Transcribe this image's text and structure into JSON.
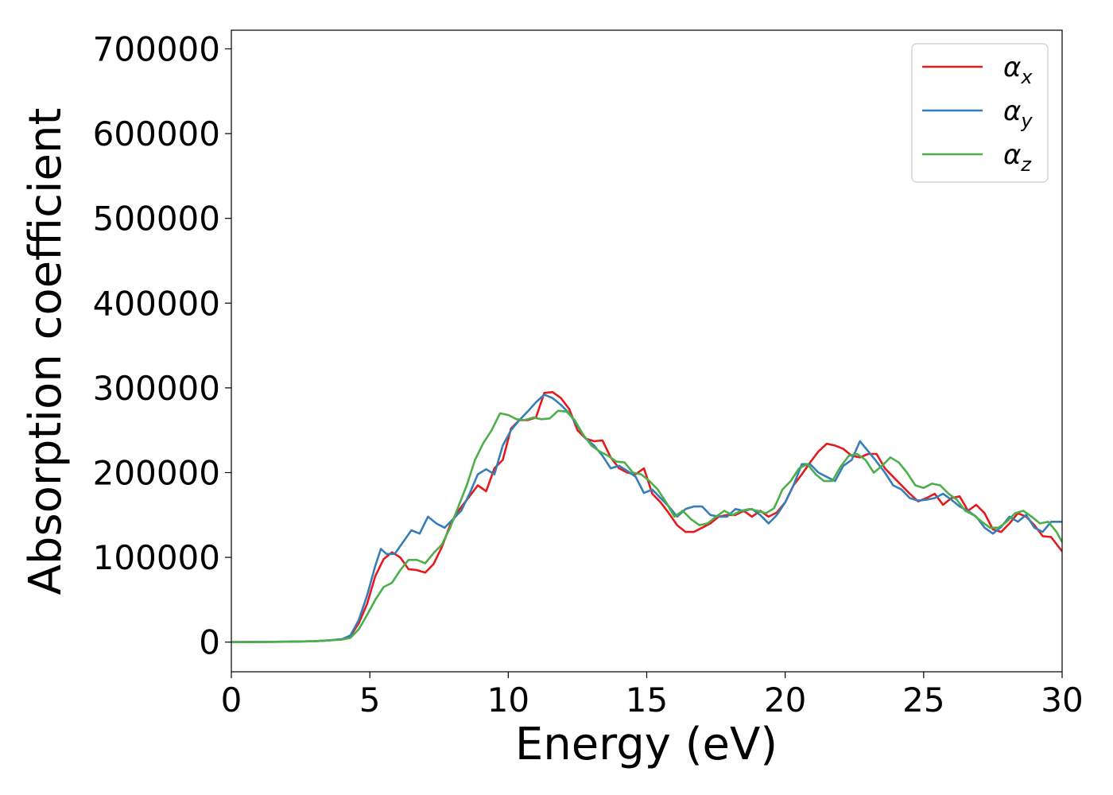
{
  "chart_data": {
    "type": "line",
    "title": "",
    "xlabel": "Energy (eV)",
    "ylabel": "Absorption coefficient",
    "xlim": [
      0,
      30
    ],
    "ylim": [
      -35000,
      722000
    ],
    "xticks": [
      0,
      5,
      10,
      15,
      20,
      25,
      30
    ],
    "yticks": [
      0,
      100000,
      200000,
      300000,
      400000,
      500000,
      600000,
      700000
    ],
    "grid": false,
    "legend_placement": "top-right",
    "series": [
      {
        "name": "α_x",
        "legend_base": "α",
        "legend_sub": "x",
        "color": "#e41a1c",
        "points": [
          [
            0,
            0
          ],
          [
            2,
            500
          ],
          [
            3,
            1000
          ],
          [
            3.5,
            2000
          ],
          [
            4,
            3500
          ],
          [
            4.3,
            7000
          ],
          [
            4.6,
            22000
          ],
          [
            4.9,
            45000
          ],
          [
            5.2,
            78000
          ],
          [
            5.5,
            98000
          ],
          [
            5.8,
            106000
          ],
          [
            6.1,
            100000
          ],
          [
            6.4,
            86000
          ],
          [
            6.7,
            85000
          ],
          [
            7.0,
            82000
          ],
          [
            7.3,
            92000
          ],
          [
            7.6,
            112000
          ],
          [
            7.9,
            138000
          ],
          [
            8.2,
            155000
          ],
          [
            8.6,
            172000
          ],
          [
            8.9,
            185000
          ],
          [
            9.2,
            178000
          ],
          [
            9.5,
            205000
          ],
          [
            9.8,
            215000
          ],
          [
            10.1,
            252000
          ],
          [
            10.4,
            262000
          ],
          [
            10.7,
            262000
          ],
          [
            11.0,
            265000
          ],
          [
            11.3,
            294000
          ],
          [
            11.6,
            295000
          ],
          [
            11.9,
            288000
          ],
          [
            12.2,
            275000
          ],
          [
            12.5,
            250000
          ],
          [
            12.8,
            240000
          ],
          [
            13.1,
            237000
          ],
          [
            13.4,
            238000
          ],
          [
            13.7,
            218000
          ],
          [
            14.0,
            205000
          ],
          [
            14.3,
            200000
          ],
          [
            14.6,
            198000
          ],
          [
            14.9,
            205000
          ],
          [
            15.2,
            175000
          ],
          [
            15.5,
            165000
          ],
          [
            15.8,
            152000
          ],
          [
            16.1,
            138000
          ],
          [
            16.4,
            130000
          ],
          [
            16.7,
            130000
          ],
          [
            17.0,
            135000
          ],
          [
            17.3,
            140000
          ],
          [
            17.6,
            148000
          ],
          [
            17.9,
            150000
          ],
          [
            18.2,
            150000
          ],
          [
            18.5,
            155000
          ],
          [
            18.8,
            148000
          ],
          [
            19.1,
            155000
          ],
          [
            19.4,
            148000
          ],
          [
            19.7,
            153000
          ],
          [
            20.0,
            165000
          ],
          [
            20.3,
            185000
          ],
          [
            20.6,
            198000
          ],
          [
            20.9,
            212000
          ],
          [
            21.2,
            225000
          ],
          [
            21.5,
            234000
          ],
          [
            21.8,
            232000
          ],
          [
            22.1,
            228000
          ],
          [
            22.4,
            220000
          ],
          [
            22.7,
            218000
          ],
          [
            23.0,
            222000
          ],
          [
            23.3,
            222000
          ],
          [
            23.6,
            205000
          ],
          [
            23.9,
            195000
          ],
          [
            24.2,
            185000
          ],
          [
            24.5,
            175000
          ],
          [
            24.8,
            166000
          ],
          [
            25.1,
            170000
          ],
          [
            25.4,
            175000
          ],
          [
            25.7,
            162000
          ],
          [
            26.0,
            170000
          ],
          [
            26.3,
            172000
          ],
          [
            26.6,
            155000
          ],
          [
            26.9,
            162000
          ],
          [
            27.2,
            152000
          ],
          [
            27.5,
            133000
          ],
          [
            27.8,
            130000
          ],
          [
            28.1,
            140000
          ],
          [
            28.4,
            152000
          ],
          [
            28.7,
            148000
          ],
          [
            29.0,
            138000
          ],
          [
            29.3,
            125000
          ],
          [
            29.6,
            124000
          ],
          [
            30,
            107000
          ]
        ]
      },
      {
        "name": "α_y",
        "legend_base": "α",
        "legend_sub": "y",
        "color": "#377eb8",
        "points": [
          [
            0,
            0
          ],
          [
            2,
            500
          ],
          [
            3,
            1000
          ],
          [
            3.5,
            2000
          ],
          [
            4,
            3500
          ],
          [
            4.3,
            8000
          ],
          [
            4.6,
            26000
          ],
          [
            4.9,
            55000
          ],
          [
            5.2,
            90000
          ],
          [
            5.4,
            110000
          ],
          [
            5.6,
            104000
          ],
          [
            5.9,
            104000
          ],
          [
            6.2,
            118000
          ],
          [
            6.5,
            132000
          ],
          [
            6.8,
            128000
          ],
          [
            7.1,
            148000
          ],
          [
            7.4,
            140000
          ],
          [
            7.7,
            135000
          ],
          [
            8.0,
            145000
          ],
          [
            8.3,
            155000
          ],
          [
            8.6,
            175000
          ],
          [
            8.9,
            198000
          ],
          [
            9.2,
            204000
          ],
          [
            9.5,
            198000
          ],
          [
            9.8,
            232000
          ],
          [
            10.1,
            250000
          ],
          [
            10.4,
            262000
          ],
          [
            10.7,
            272000
          ],
          [
            11.0,
            283000
          ],
          [
            11.3,
            292000
          ],
          [
            11.6,
            288000
          ],
          [
            11.9,
            280000
          ],
          [
            12.2,
            270000
          ],
          [
            12.5,
            255000
          ],
          [
            12.8,
            240000
          ],
          [
            13.1,
            232000
          ],
          [
            13.4,
            220000
          ],
          [
            13.7,
            205000
          ],
          [
            14.0,
            208000
          ],
          [
            14.3,
            202000
          ],
          [
            14.6,
            195000
          ],
          [
            14.9,
            176000
          ],
          [
            15.2,
            180000
          ],
          [
            15.5,
            170000
          ],
          [
            15.8,
            160000
          ],
          [
            16.1,
            148000
          ],
          [
            16.4,
            157000
          ],
          [
            16.7,
            160000
          ],
          [
            17.0,
            160000
          ],
          [
            17.3,
            150000
          ],
          [
            17.6,
            148000
          ],
          [
            17.9,
            148000
          ],
          [
            18.2,
            157000
          ],
          [
            18.5,
            155000
          ],
          [
            18.8,
            157000
          ],
          [
            19.1,
            150000
          ],
          [
            19.4,
            140000
          ],
          [
            19.7,
            150000
          ],
          [
            20.0,
            165000
          ],
          [
            20.3,
            185000
          ],
          [
            20.6,
            210000
          ],
          [
            20.9,
            210000
          ],
          [
            21.2,
            200000
          ],
          [
            21.5,
            195000
          ],
          [
            21.8,
            190000
          ],
          [
            22.1,
            208000
          ],
          [
            22.4,
            215000
          ],
          [
            22.7,
            237000
          ],
          [
            23.0,
            225000
          ],
          [
            23.3,
            213000
          ],
          [
            23.6,
            200000
          ],
          [
            23.9,
            185000
          ],
          [
            24.2,
            180000
          ],
          [
            24.5,
            170000
          ],
          [
            24.8,
            167000
          ],
          [
            25.1,
            168000
          ],
          [
            25.4,
            170000
          ],
          [
            25.7,
            175000
          ],
          [
            26.0,
            168000
          ],
          [
            26.3,
            160000
          ],
          [
            26.6,
            155000
          ],
          [
            26.9,
            148000
          ],
          [
            27.2,
            135000
          ],
          [
            27.5,
            128000
          ],
          [
            27.8,
            136000
          ],
          [
            28.1,
            148000
          ],
          [
            28.4,
            142000
          ],
          [
            28.7,
            150000
          ],
          [
            29.0,
            135000
          ],
          [
            29.3,
            130000
          ],
          [
            29.6,
            142000
          ],
          [
            30,
            142000
          ]
        ]
      },
      {
        "name": "α_z",
        "legend_base": "α",
        "legend_sub": "z",
        "color": "#4daf4a",
        "points": [
          [
            0,
            0
          ],
          [
            2,
            500
          ],
          [
            3,
            1000
          ],
          [
            3.5,
            2000
          ],
          [
            4,
            3000
          ],
          [
            4.3,
            5000
          ],
          [
            4.6,
            15000
          ],
          [
            4.9,
            32000
          ],
          [
            5.2,
            50000
          ],
          [
            5.5,
            65000
          ],
          [
            5.8,
            70000
          ],
          [
            6.1,
            85000
          ],
          [
            6.4,
            97000
          ],
          [
            6.7,
            97000
          ],
          [
            7.0,
            93000
          ],
          [
            7.3,
            105000
          ],
          [
            7.6,
            115000
          ],
          [
            7.9,
            135000
          ],
          [
            8.2,
            160000
          ],
          [
            8.5,
            185000
          ],
          [
            8.8,
            215000
          ],
          [
            9.1,
            235000
          ],
          [
            9.4,
            250000
          ],
          [
            9.7,
            270000
          ],
          [
            10.0,
            268000
          ],
          [
            10.3,
            263000
          ],
          [
            10.6,
            262000
          ],
          [
            10.9,
            265000
          ],
          [
            11.2,
            263000
          ],
          [
            11.5,
            264000
          ],
          [
            11.8,
            273000
          ],
          [
            12.1,
            272000
          ],
          [
            12.4,
            262000
          ],
          [
            12.7,
            245000
          ],
          [
            13.0,
            232000
          ],
          [
            13.3,
            225000
          ],
          [
            13.6,
            220000
          ],
          [
            13.9,
            213000
          ],
          [
            14.2,
            212000
          ],
          [
            14.5,
            200000
          ],
          [
            14.8,
            198000
          ],
          [
            15.1,
            190000
          ],
          [
            15.4,
            180000
          ],
          [
            15.7,
            165000
          ],
          [
            16.0,
            148000
          ],
          [
            16.3,
            155000
          ],
          [
            16.6,
            145000
          ],
          [
            16.9,
            138000
          ],
          [
            17.2,
            140000
          ],
          [
            17.5,
            148000
          ],
          [
            17.8,
            155000
          ],
          [
            18.1,
            150000
          ],
          [
            18.4,
            155000
          ],
          [
            18.7,
            157000
          ],
          [
            19.0,
            155000
          ],
          [
            19.3,
            152000
          ],
          [
            19.6,
            158000
          ],
          [
            19.9,
            180000
          ],
          [
            20.2,
            190000
          ],
          [
            20.5,
            205000
          ],
          [
            20.8,
            210000
          ],
          [
            21.1,
            198000
          ],
          [
            21.4,
            190000
          ],
          [
            21.7,
            190000
          ],
          [
            22.0,
            207000
          ],
          [
            22.3,
            220000
          ],
          [
            22.6,
            222000
          ],
          [
            22.9,
            215000
          ],
          [
            23.2,
            200000
          ],
          [
            23.5,
            208000
          ],
          [
            23.8,
            218000
          ],
          [
            24.1,
            212000
          ],
          [
            24.4,
            200000
          ],
          [
            24.7,
            185000
          ],
          [
            25.0,
            182000
          ],
          [
            25.3,
            187000
          ],
          [
            25.6,
            185000
          ],
          [
            25.9,
            175000
          ],
          [
            26.2,
            168000
          ],
          [
            26.5,
            155000
          ],
          [
            26.8,
            150000
          ],
          [
            27.1,
            142000
          ],
          [
            27.4,
            135000
          ],
          [
            27.7,
            135000
          ],
          [
            28.0,
            142000
          ],
          [
            28.3,
            152000
          ],
          [
            28.6,
            155000
          ],
          [
            28.9,
            148000
          ],
          [
            29.2,
            140000
          ],
          [
            29.5,
            142000
          ],
          [
            29.8,
            130000
          ],
          [
            30,
            118000
          ]
        ]
      }
    ]
  }
}
